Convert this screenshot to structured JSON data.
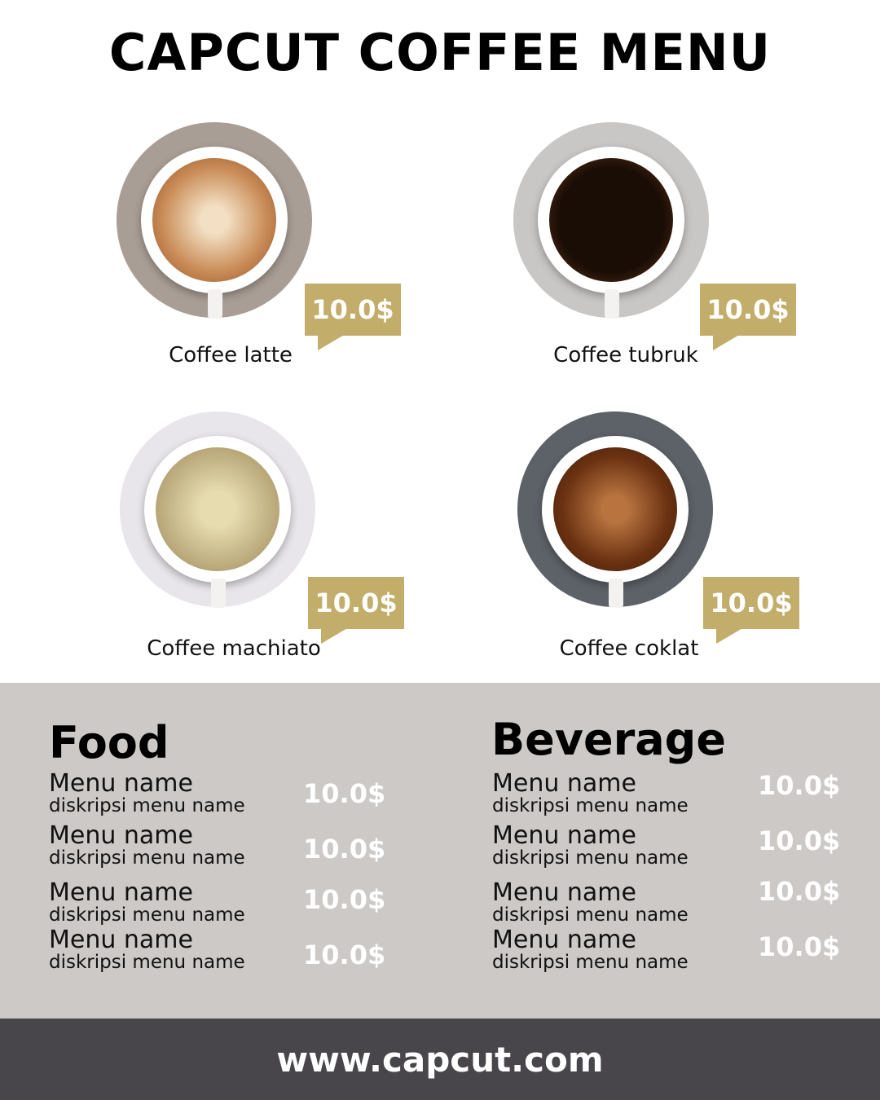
{
  "title": "CAPCUT COFFEE MENU",
  "products": [
    {
      "name": "Coffee latte",
      "price": "10.0$"
    },
    {
      "name": "Coffee tubruk",
      "price": "10.0$"
    },
    {
      "name": "Coffee machiato",
      "price": "10.0$"
    },
    {
      "name": "Coffee coklat",
      "price": "10.0$"
    }
  ],
  "food": {
    "heading": "Food",
    "items": [
      {
        "name": "Menu name",
        "desc": "diskripsi menu name",
        "price": "10.0$"
      },
      {
        "name": "Menu name",
        "desc": "diskripsi menu name",
        "price": "10.0$"
      },
      {
        "name": "Menu name",
        "desc": "diskripsi menu name",
        "price": "10.0$"
      },
      {
        "name": "Menu name",
        "desc": "diskripsi menu name",
        "price": "10.0$"
      }
    ]
  },
  "beverage": {
    "heading": "Beverage",
    "items": [
      {
        "name": "Menu name",
        "desc": "diskripsi menu name",
        "price": "10.0$"
      },
      {
        "name": "Menu name",
        "desc": "diskripsi menu name",
        "price": "10.0$"
      },
      {
        "name": "Menu name",
        "desc": "diskripsi menu name",
        "price": "10.0$"
      },
      {
        "name": "Menu name",
        "desc": "diskripsi menu name",
        "price": "10.0$"
      }
    ]
  },
  "footer": {
    "url": "www.capcut.com"
  },
  "colors": {
    "accent": "#c2ad6a",
    "band": "#ccc9c6",
    "footer": "#48464b"
  }
}
